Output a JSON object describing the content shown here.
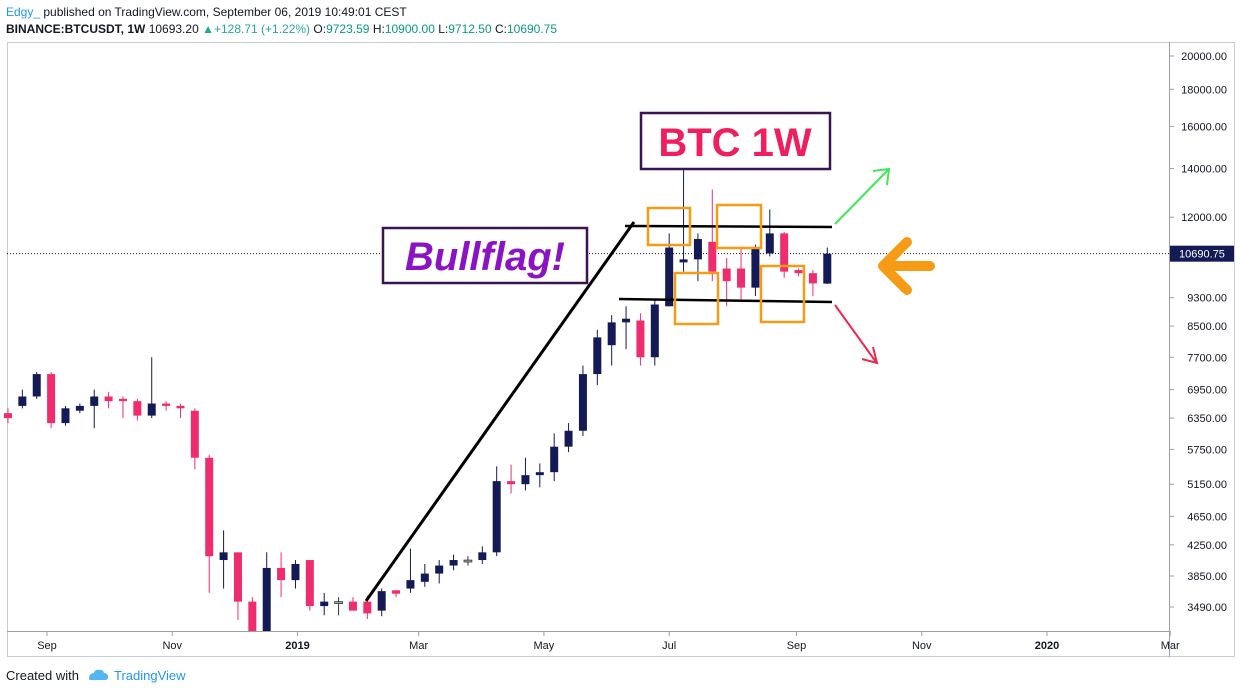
{
  "header": {
    "author": "Edgy_",
    "published_text": "published on TradingView.com, September 06, 2019 10:49:01 CEST",
    "symbol": "BINANCE:BTCUSDT, 1W",
    "last_price": "10693.20",
    "change": "+128.71 (+1.22%)",
    "o_label": "O:",
    "o_value": "9723.59",
    "h_label": "H:",
    "h_value": "10900.00",
    "l_label": "L:",
    "l_value": "9712.50",
    "c_label": "C:",
    "c_value": "10690.75"
  },
  "annotations": {
    "title_box": "BTC 1W",
    "pattern_box": "Bullflag!"
  },
  "colors": {
    "up": "#131a55",
    "down": "#ef2d6e",
    "neutral": "#9e9e9e",
    "text_green": "#089981",
    "title_red": "#ef1f5f",
    "pattern_purple": "#8a14c4",
    "box_border": "#3a1450",
    "highlight_orange": "#f59b16",
    "arrow_green": "#3ee85a",
    "arrow_red": "#ea2a4c"
  },
  "footer": {
    "created_with": "Created with",
    "brand": "TradingView"
  },
  "chart_data": {
    "type": "candlestick",
    "symbol": "BINANCE:BTCUSDT",
    "interval": "1W",
    "y_scale": "log",
    "ylim": [
      3250,
      21500
    ],
    "y_ticks": [
      "20000.00",
      "18000.00",
      "16000.00",
      "14000.00",
      "12000.00",
      "9300.00",
      "8500.00",
      "7700.00",
      "6950.00",
      "6350.00",
      "5750.00",
      "5150.00",
      "4650.00",
      "4250.00",
      "3850.00",
      "3490.00"
    ],
    "y_tick_values": [
      20000,
      18000,
      16000,
      14000,
      12000,
      9300,
      8500,
      7700,
      6950,
      6350,
      5750,
      5150,
      4650,
      4250,
      3850,
      3490
    ],
    "x_ticks": [
      "Sep",
      "Nov",
      "2019",
      "Mar",
      "May",
      "Jul",
      "Sep",
      "Nov",
      "2020",
      "Mar"
    ],
    "x_tick_dates": [
      "2018-09-01",
      "2018-11-01",
      "2019-01-01",
      "2019-03-01",
      "2019-05-01",
      "2019-07-01",
      "2019-09-01",
      "2019-11-01",
      "2020-01-01",
      "2020-03-01"
    ],
    "price_line": 10690.75,
    "price_label": "10690.75",
    "candles": [
      {
        "date": "2018-08-13",
        "o": 6450,
        "h": 6550,
        "l": 6250,
        "c": 6350
      },
      {
        "date": "2018-08-20",
        "o": 6600,
        "h": 6950,
        "l": 6550,
        "c": 6800
      },
      {
        "date": "2018-08-27",
        "o": 6800,
        "h": 7350,
        "l": 6750,
        "c": 7300
      },
      {
        "date": "2018-09-03",
        "o": 7300,
        "h": 7350,
        "l": 6150,
        "c": 6250
      },
      {
        "date": "2018-09-10",
        "o": 6250,
        "h": 6600,
        "l": 6200,
        "c": 6550
      },
      {
        "date": "2018-09-17",
        "o": 6500,
        "h": 6650,
        "l": 6450,
        "c": 6600
      },
      {
        "date": "2018-09-24",
        "o": 6600,
        "h": 6950,
        "l": 6150,
        "c": 6800
      },
      {
        "date": "2018-10-01",
        "o": 6800,
        "h": 6900,
        "l": 6550,
        "c": 6700
      },
      {
        "date": "2018-10-08",
        "o": 6750,
        "h": 6800,
        "l": 6350,
        "c": 6700
      },
      {
        "date": "2018-10-15",
        "o": 6700,
        "h": 6750,
        "l": 6300,
        "c": 6400
      },
      {
        "date": "2018-10-22",
        "o": 6400,
        "h": 7700,
        "l": 6350,
        "c": 6650
      },
      {
        "date": "2018-10-29",
        "o": 6650,
        "h": 6700,
        "l": 6500,
        "c": 6600
      },
      {
        "date": "2018-11-05",
        "o": 6600,
        "h": 6650,
        "l": 6350,
        "c": 6550
      },
      {
        "date": "2018-11-12",
        "o": 6500,
        "h": 6550,
        "l": 5400,
        "c": 5600
      },
      {
        "date": "2018-11-19",
        "o": 5600,
        "h": 5650,
        "l": 3650,
        "c": 4100
      },
      {
        "date": "2018-11-26",
        "o": 4050,
        "h": 4450,
        "l": 3700,
        "c": 4150
      },
      {
        "date": "2018-12-03",
        "o": 4150,
        "h": 4150,
        "l": 3350,
        "c": 3550
      },
      {
        "date": "2018-12-10",
        "o": 3550,
        "h": 3600,
        "l": 3150,
        "c": 3200
      },
      {
        "date": "2018-12-17",
        "o": 3200,
        "h": 4150,
        "l": 3150,
        "c": 3950
      },
      {
        "date": "2018-12-24",
        "o": 3950,
        "h": 4150,
        "l": 3600,
        "c": 3800
      },
      {
        "date": "2018-12-31",
        "o": 3800,
        "h": 4050,
        "l": 3700,
        "c": 4000
      },
      {
        "date": "2019-01-07",
        "o": 4050,
        "h": 4050,
        "l": 3450,
        "c": 3500
      },
      {
        "date": "2019-01-14",
        "o": 3500,
        "h": 3650,
        "l": 3400,
        "c": 3550
      },
      {
        "date": "2019-01-21",
        "o": 3550,
        "h": 3600,
        "l": 3400,
        "c": 3550
      },
      {
        "date": "2019-01-28",
        "o": 3550,
        "h": 3600,
        "l": 3450,
        "c": 3450
      },
      {
        "date": "2019-02-04",
        "o": 3550,
        "h": 3620,
        "l": 3360,
        "c": 3420
      },
      {
        "date": "2019-02-11",
        "o": 3450,
        "h": 3700,
        "l": 3390,
        "c": 3670
      },
      {
        "date": "2019-02-18",
        "o": 3680,
        "h": 3650,
        "l": 3600,
        "c": 3640
      },
      {
        "date": "2019-02-25",
        "o": 3700,
        "h": 4200,
        "l": 3650,
        "c": 3800
      },
      {
        "date": "2019-03-04",
        "o": 3780,
        "h": 4000,
        "l": 3720,
        "c": 3880
      },
      {
        "date": "2019-03-11",
        "o": 3880,
        "h": 4050,
        "l": 3760,
        "c": 3980
      },
      {
        "date": "2019-03-18",
        "o": 3980,
        "h": 4120,
        "l": 3920,
        "c": 4050
      },
      {
        "date": "2019-03-25",
        "o": 4050,
        "h": 4100,
        "l": 3980,
        "c": 4050
      },
      {
        "date": "2019-04-01",
        "o": 4050,
        "h": 4230,
        "l": 4000,
        "c": 4150
      },
      {
        "date": "2019-04-08",
        "o": 4150,
        "h": 5450,
        "l": 4100,
        "c": 5200
      },
      {
        "date": "2019-04-15",
        "o": 5200,
        "h": 5480,
        "l": 5000,
        "c": 5150
      },
      {
        "date": "2019-04-22",
        "o": 5150,
        "h": 5600,
        "l": 5050,
        "c": 5300
      },
      {
        "date": "2019-04-29",
        "o": 5300,
        "h": 5500,
        "l": 5100,
        "c": 5350
      },
      {
        "date": "2019-05-06",
        "o": 5350,
        "h": 6050,
        "l": 5200,
        "c": 5800
      },
      {
        "date": "2019-05-13",
        "o": 5800,
        "h": 6250,
        "l": 5700,
        "c": 6100
      },
      {
        "date": "2019-05-20",
        "o": 6100,
        "h": 7500,
        "l": 6000,
        "c": 7300
      },
      {
        "date": "2019-05-27",
        "o": 7300,
        "h": 8400,
        "l": 7050,
        "c": 8200
      },
      {
        "date": "2019-06-03",
        "o": 8000,
        "h": 8800,
        "l": 7500,
        "c": 8600
      },
      {
        "date": "2019-06-10",
        "o": 8600,
        "h": 9050,
        "l": 7900,
        "c": 8700
      },
      {
        "date": "2019-06-17",
        "o": 8650,
        "h": 8850,
        "l": 7500,
        "c": 7700
      },
      {
        "date": "2019-06-24",
        "o": 7700,
        "h": 9250,
        "l": 7500,
        "c": 9100
      },
      {
        "date": "2019-07-01",
        "o": 9050,
        "h": 11400,
        "l": 9050,
        "c": 10900
      },
      {
        "date": "2019-07-08",
        "o": 10400,
        "h": 13950,
        "l": 10100,
        "c": 10500
      },
      {
        "date": "2019-07-15",
        "o": 10500,
        "h": 11400,
        "l": 9800,
        "c": 11200
      },
      {
        "date": "2019-07-22",
        "o": 11100,
        "h": 13100,
        "l": 9800,
        "c": 10100
      },
      {
        "date": "2019-07-29",
        "o": 10200,
        "h": 10550,
        "l": 9050,
        "c": 9800
      },
      {
        "date": "2019-08-05",
        "o": 10200,
        "h": 10900,
        "l": 9250,
        "c": 9600
      },
      {
        "date": "2019-08-12",
        "o": 9600,
        "h": 11000,
        "l": 9350,
        "c": 10900
      },
      {
        "date": "2019-08-19",
        "o": 10700,
        "h": 12300,
        "l": 10600,
        "c": 11400
      },
      {
        "date": "2019-08-26",
        "o": 11400,
        "h": 11450,
        "l": 9900,
        "c": 10100
      },
      {
        "date": "2019-09-02",
        "o": 10150,
        "h": 10200,
        "l": 9950,
        "c": 10050
      },
      {
        "date": "2019-09-09",
        "o": 10050,
        "h": 10150,
        "l": 9350,
        "c": 9730
      },
      {
        "date": "2019-09-16",
        "o": 9723.59,
        "h": 10900,
        "l": 9712.5,
        "c": 10690.75
      }
    ]
  }
}
